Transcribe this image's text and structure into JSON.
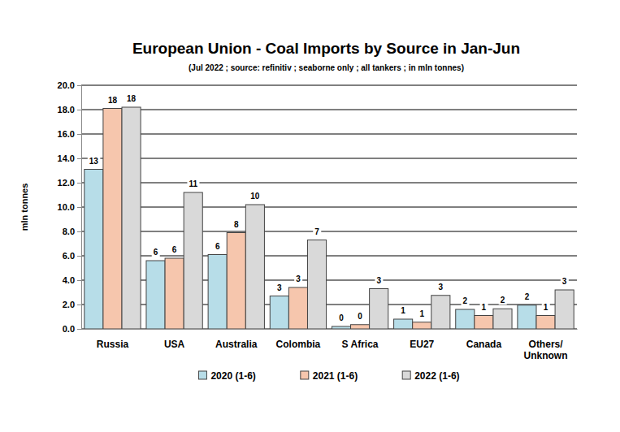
{
  "chart_data": {
    "type": "bar",
    "title": "European Union - Coal Imports by Source in Jan-Jun",
    "subtitle": "(Jul 2022 ; source: refinitiv ; seaborne only ; all tankers ; in mln tonnes)",
    "y_label": "mln tonnes",
    "categories": [
      "Russia",
      "USA",
      "Australia",
      "Colombia",
      "S Africa",
      "EU27",
      "Canada",
      "Others/\nUnknown"
    ],
    "series": [
      {
        "name": "2020 (1-6)",
        "color": "#b7dde8",
        "values": [
          13.1,
          5.6,
          6.1,
          2.7,
          0.2,
          0.8,
          1.6,
          1.95
        ],
        "value_labels": [
          "13",
          "6",
          "6",
          "3",
          "0",
          "1",
          "2",
          "2"
        ]
      },
      {
        "name": "2021 (1-6)",
        "color": "#f6c6ad",
        "values": [
          18.1,
          5.8,
          7.9,
          3.4,
          0.35,
          0.55,
          1.1,
          1.1
        ],
        "value_labels": [
          "18",
          "6",
          "8",
          "3",
          "0",
          "1",
          "1",
          "1"
        ]
      },
      {
        "name": "2022 (1-6)",
        "color": "#d9d9d9",
        "values": [
          18.2,
          11.2,
          10.2,
          7.3,
          3.3,
          2.75,
          1.65,
          3.2
        ],
        "value_labels": [
          "18",
          "11",
          "10",
          "7",
          "3",
          "3",
          "2",
          "3"
        ]
      }
    ],
    "ylim": [
      0,
      20
    ],
    "yticks": [
      {
        "value": 0,
        "label": "0.0"
      },
      {
        "value": 2,
        "label": "2.0"
      },
      {
        "value": 4,
        "label": "4.0"
      },
      {
        "value": 6,
        "label": "6.0"
      },
      {
        "value": 8,
        "label": "8.0"
      },
      {
        "value": 10,
        "label": "10.0"
      },
      {
        "value": 12,
        "label": "12.0"
      },
      {
        "value": 14,
        "label": "14.0"
      },
      {
        "value": 16,
        "label": "16.0"
      },
      {
        "value": 18,
        "label": "18.0"
      },
      {
        "value": 20,
        "label": "20.0"
      }
    ],
    "grid": true,
    "data_labels": true,
    "legend": "bottom"
  }
}
